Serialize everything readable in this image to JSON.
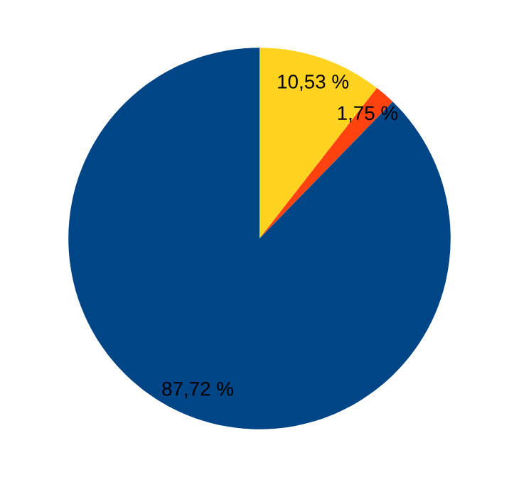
{
  "chart_data": {
    "type": "pie",
    "categories": [
      null,
      null,
      null
    ],
    "values": [
      10.53,
      1.75,
      87.72
    ],
    "colors": [
      "#ffd320",
      "#ff420e",
      "#004586"
    ],
    "value_labels": [
      "10,53 %",
      "1,75 %",
      "87,72 %"
    ],
    "legend": false
  }
}
